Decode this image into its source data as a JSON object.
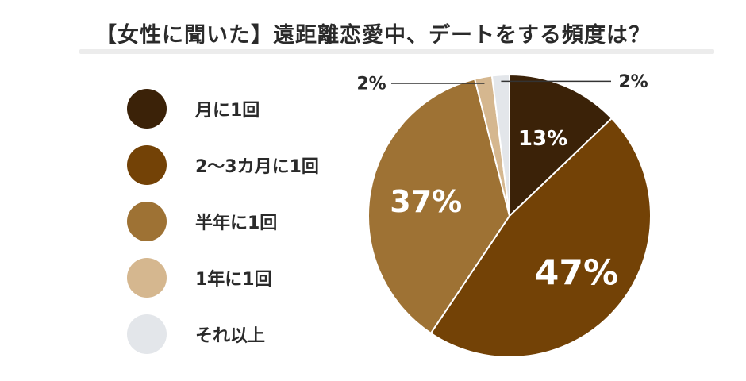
{
  "title": "【女性に聞いた】遠距離恋愛中、デートをする頻度は？",
  "chart_data": {
    "type": "pie",
    "title": "【女性に聞いた】遠距離恋愛中、デートをする頻度は？",
    "slices": [
      {
        "label": "月に1回",
        "value": 13,
        "text": "13%",
        "color": "#3b2208"
      },
      {
        "label": "2〜3カ月に1回",
        "value": 47,
        "text": "47%",
        "color": "#734206"
      },
      {
        "label": "半年に1回",
        "value": 37,
        "text": "37%",
        "color": "#9e7234"
      },
      {
        "label": "1年に1回",
        "value": 2,
        "text": "2%",
        "color": "#d5b78f"
      },
      {
        "label": "それ以上",
        "value": 2,
        "text": "2%",
        "color": "#e3e6ea"
      }
    ],
    "legend_position": "left"
  }
}
